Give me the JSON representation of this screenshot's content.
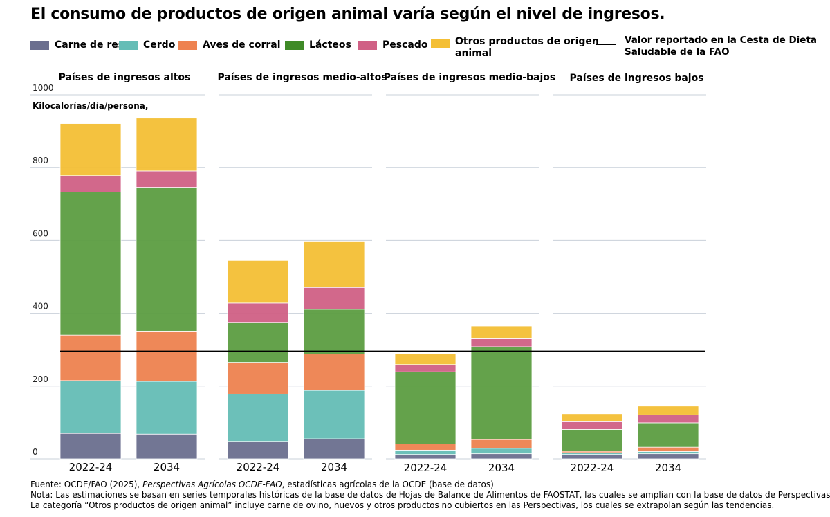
{
  "title": "El consumo de productos de origen animal varía según el nivel de ingresos.",
  "legend": {
    "beef": "Carne de res",
    "pork": "Cerdo",
    "poultry": "Aves de corral",
    "dairy": "Lácteos",
    "fish": "Pescado",
    "other_line1": "Otros productos de origen",
    "other_line2": "animal",
    "reference_line1": "Valor reportado en la Cesta de Dieta",
    "reference_line2": "Saludable de la FAO"
  },
  "chart_data": {
    "type": "bar",
    "stacked": true,
    "ylabel": "Kilocalorías/día/persona,",
    "ylim": [
      0,
      1000
    ],
    "yticks": [
      0,
      200,
      400,
      600,
      800,
      1000
    ],
    "reference_line": {
      "value": 295,
      "label": "Valor reportado en la Cesta de Dieta Saludable de la FAO"
    },
    "series": [
      {
        "key": "beef",
        "name": "Carne de res",
        "color": "#6b6f8f"
      },
      {
        "key": "pork",
        "name": "Cerdo",
        "color": "#65bdb6"
      },
      {
        "key": "poultry",
        "name": "Aves de corral",
        "color": "#ee8250"
      },
      {
        "key": "dairy",
        "name": "Lácteos",
        "color": "#5c9e42"
      },
      {
        "key": "fish",
        "name": "Pescado",
        "color": "#d06085"
      },
      {
        "key": "other",
        "name": "Otros productos de origen animal",
        "color": "#f4bf35"
      }
    ],
    "panels": [
      {
        "title": "Países de ingresos altos",
        "bars": [
          {
            "label": "2022-24",
            "values": {
              "beef": 70,
              "pork": 145,
              "poultry": 125,
              "dairy": 393,
              "fish": 45,
              "other": 143
            }
          },
          {
            "label": "2034",
            "values": {
              "beef": 68,
              "pork": 145,
              "poultry": 138,
              "dairy": 395,
              "fish": 45,
              "other": 145
            }
          }
        ]
      },
      {
        "title": "Países de ingresos medio-altos",
        "bars": [
          {
            "label": "2022-24",
            "values": {
              "beef": 48,
              "pork": 130,
              "poultry": 87,
              "dairy": 110,
              "fish": 53,
              "other": 117
            }
          },
          {
            "label": "2034",
            "values": {
              "beef": 55,
              "pork": 133,
              "poultry": 100,
              "dairy": 123,
              "fish": 60,
              "other": 127
            }
          }
        ]
      },
      {
        "title": "Países de ingresos medio-bajos",
        "bars": [
          {
            "label": "2022-24",
            "values": {
              "beef": 12,
              "pork": 12,
              "poultry": 17,
              "dairy": 198,
              "fish": 20,
              "other": 30
            }
          },
          {
            "label": "2034",
            "values": {
              "beef": 14,
              "pork": 15,
              "poultry": 24,
              "dairy": 255,
              "fish": 22,
              "other": 35
            }
          }
        ]
      },
      {
        "title": "Países de ingresos bajos",
        "bars": [
          {
            "label": "2022-24",
            "values": {
              "beef": 12,
              "pork": 5,
              "poultry": 4,
              "dairy": 60,
              "fish": 21,
              "other": 22
            }
          },
          {
            "label": "2034",
            "values": {
              "beef": 14,
              "pork": 6,
              "poultry": 12,
              "dairy": 67,
              "fish": 22,
              "other": 24
            }
          }
        ]
      }
    ]
  },
  "footnotes": {
    "source_prefix": "Fuente: OCDE/FAO (2025), ",
    "source_italic": "Perspectivas Agrícolas OCDE-FAO",
    "source_suffix": ", estadísticas agrícolas de la OCDE (base de datos)",
    "note_line1": "Nota: Las estimaciones se basan en series temporales históricas de la base de datos de Hojas de Balance de Alimentos de FAOSTAT, las cuales se amplían con la base de datos de Perspectivas.",
    "note_line2": "La categoría “Otros productos de origen animal” incluye carne de ovino, huevos y otros productos no cubiertos en las Perspectivas, los cuales se extrapolan según las tendencias."
  }
}
